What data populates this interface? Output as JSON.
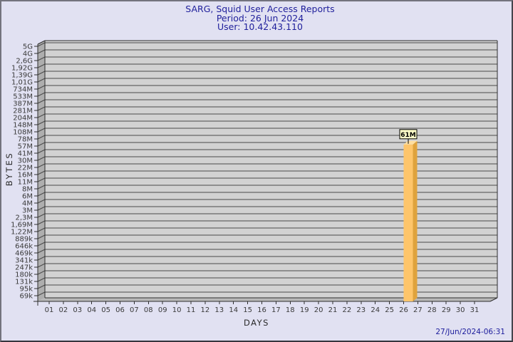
{
  "page": {
    "background": "#e1e1f2",
    "border_color": "#6f6f79"
  },
  "header": {
    "title": "SARG, Squid User Access Reports",
    "period": "Period: 26 Jun 2024",
    "user": "User: 10.42.43.110",
    "text_color": "#1f1f9b"
  },
  "footer": {
    "timestamp": "27/Jun/2024-06:31"
  },
  "chart_data": {
    "type": "bar",
    "style": "3d-bar",
    "title": "SARG, Squid User Access Reports",
    "subtitle": [
      "Period: 26 Jun 2024",
      "User: 10.42.43.110"
    ],
    "xlabel": "DAYS",
    "ylabel": "BYTES",
    "y_scale": "log",
    "grid": "on",
    "legend": "none",
    "x_categories": [
      "01",
      "02",
      "03",
      "04",
      "05",
      "06",
      "07",
      "08",
      "09",
      "10",
      "11",
      "12",
      "13",
      "14",
      "15",
      "16",
      "17",
      "18",
      "19",
      "20",
      "21",
      "22",
      "23",
      "24",
      "25",
      "26",
      "27",
      "28",
      "29",
      "30",
      "31"
    ],
    "y_tick_labels": [
      "5G",
      "4G",
      "2,6G",
      "1,92G",
      "1,39G",
      "1,01G",
      "734M",
      "533M",
      "387M",
      "281M",
      "204M",
      "148M",
      "108M",
      "78M",
      "57M",
      "41M",
      "30M",
      "22M",
      "16M",
      "11M",
      "8M",
      "6M",
      "4M",
      "3M",
      "2,3M",
      "1,69M",
      "1,22M",
      "889k",
      "646k",
      "469k",
      "341k",
      "247k",
      "180k",
      "131k",
      "95k",
      "69k"
    ],
    "bars": [
      {
        "day": "26",
        "value": 61000000,
        "value_label": "61M"
      }
    ],
    "colors": {
      "bar_front": "#fec56a",
      "bar_side": "#dfa33d",
      "bar_top": "#ffdfa0",
      "plot_bg": "#d2d2d2",
      "wall": "#aeaeae",
      "floor": "#b8b8b8",
      "grid_line": "#4a4a4a",
      "frame_line": "#2e2e2e",
      "tick_text": "#3a3a3a",
      "label_box_bg": "#ffffc9",
      "label_box_border": "#000000",
      "label_text": "#000000"
    }
  }
}
